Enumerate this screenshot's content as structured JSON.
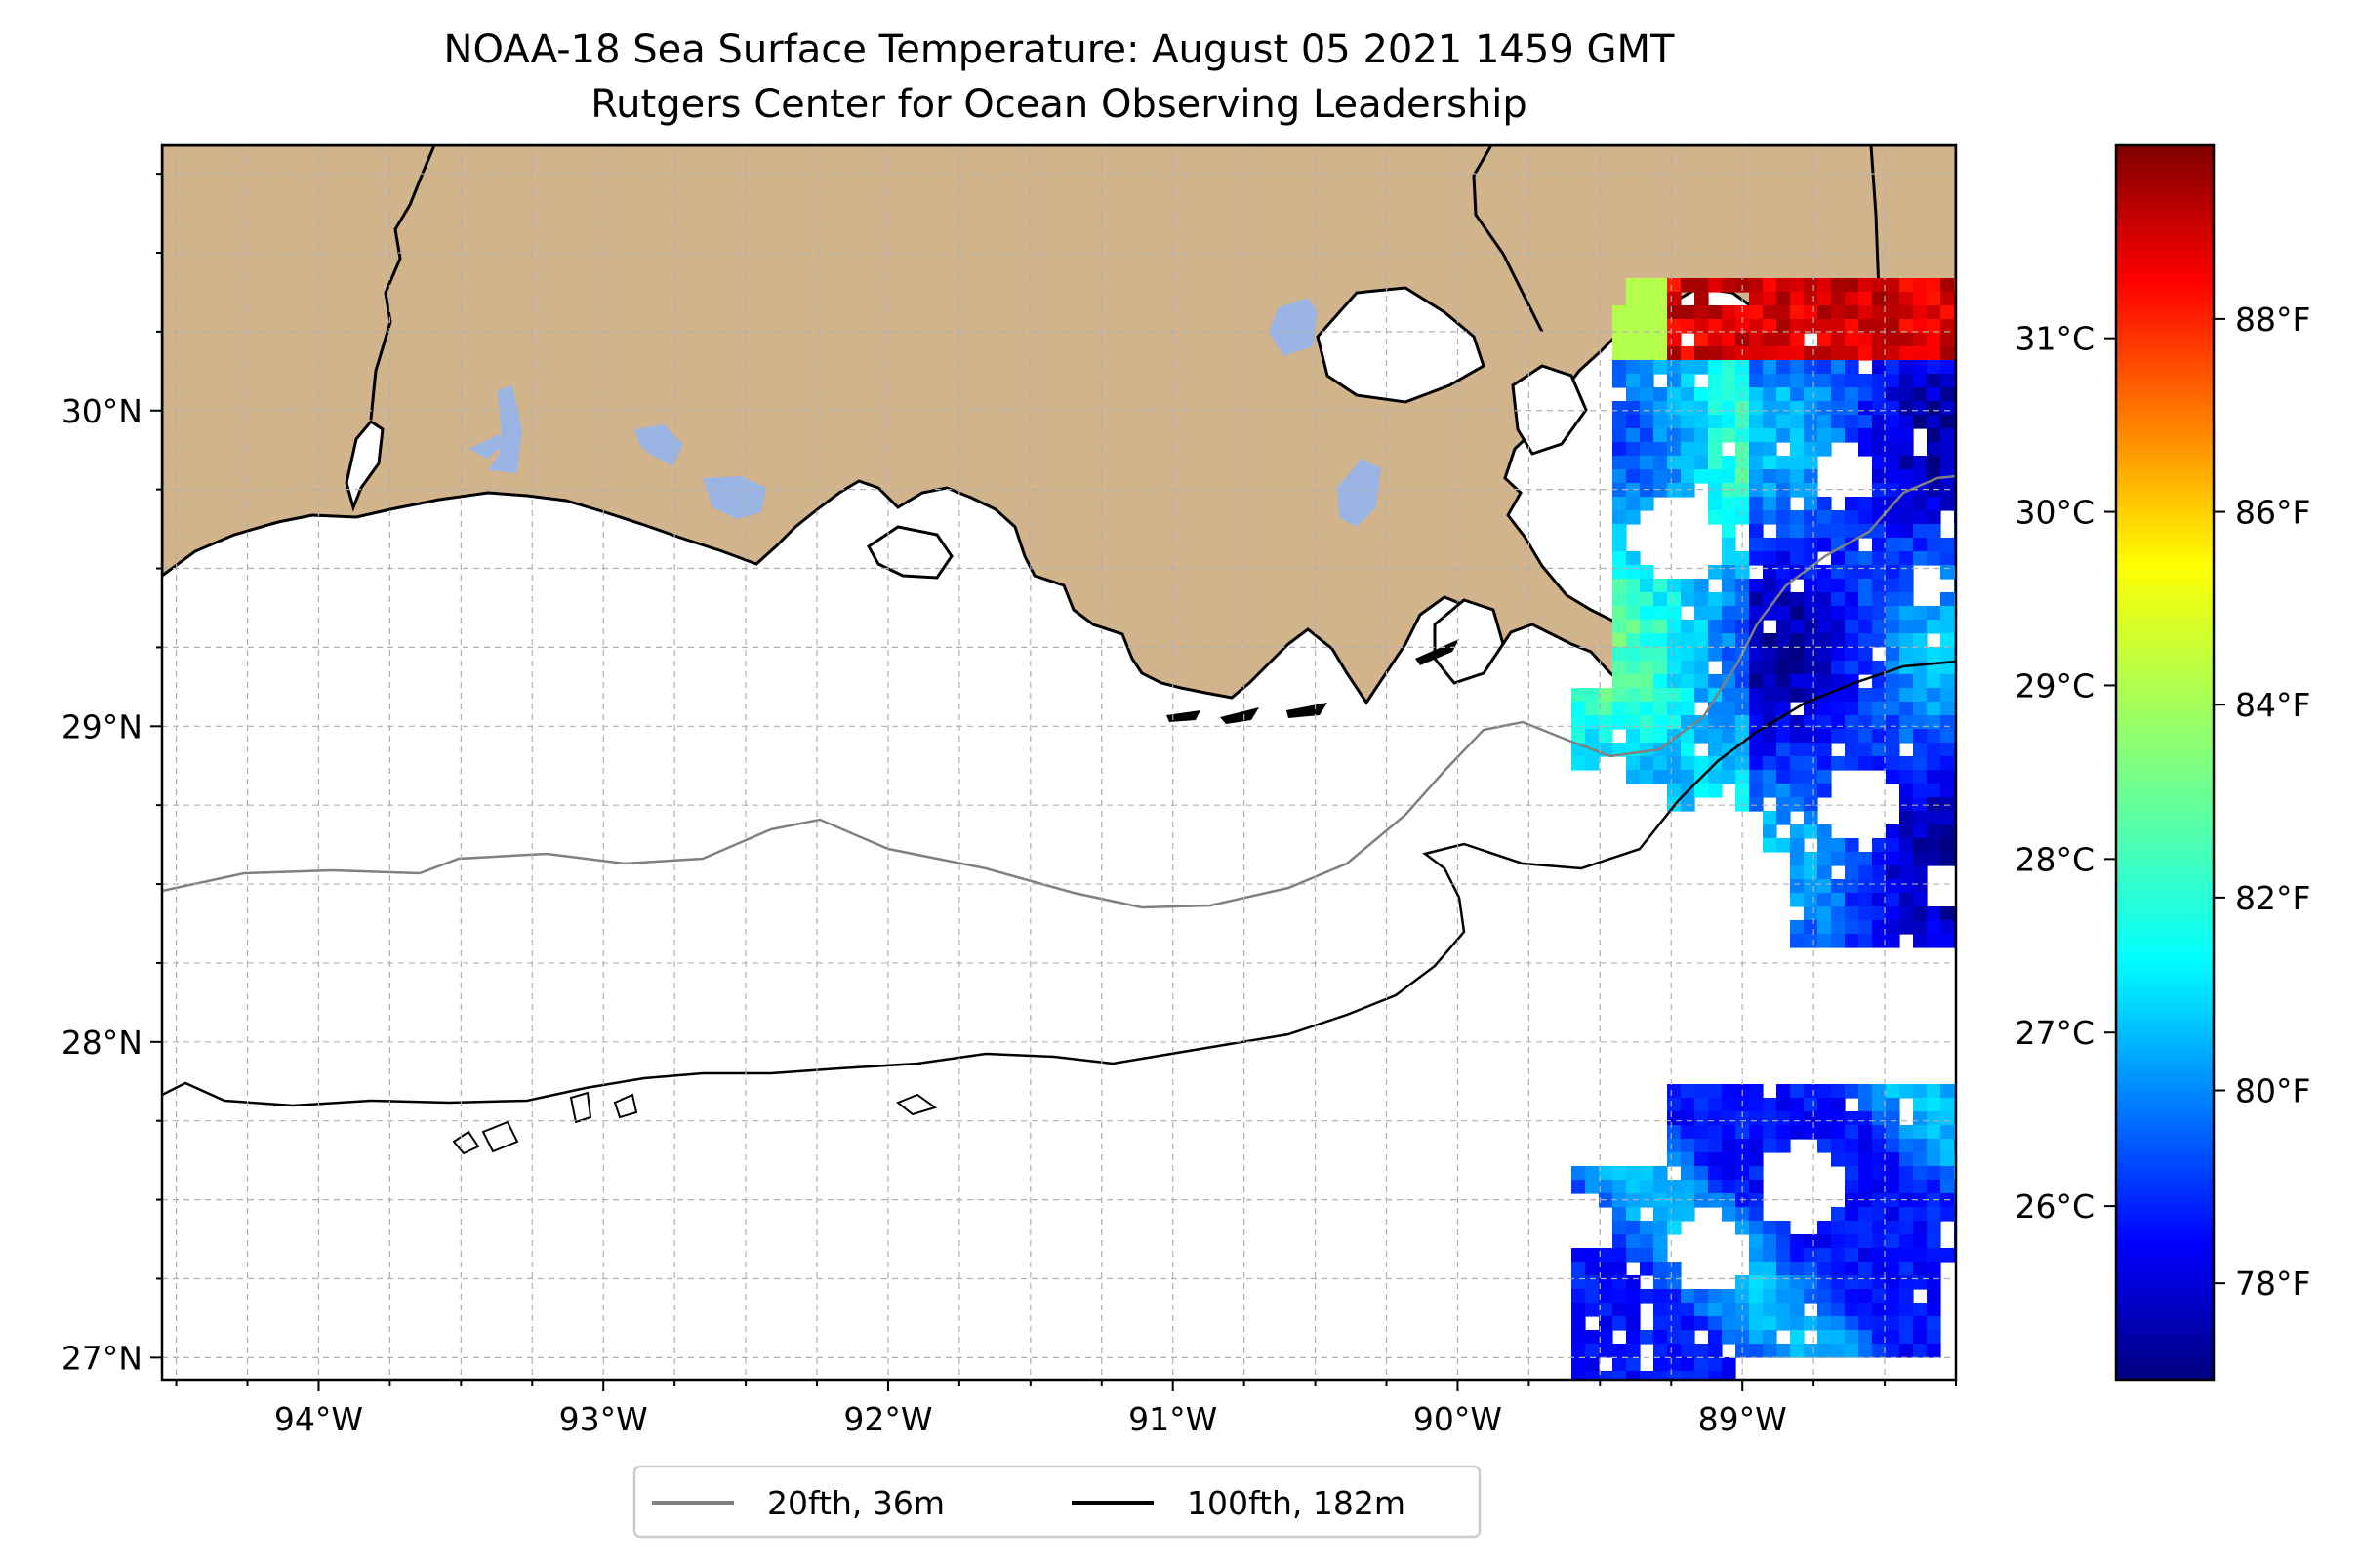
{
  "title": "NOAA-18 Sea Surface Temperature: August 05 2021 1459 GMT",
  "subtitle": "Rutgers Center for Ocean Observing Leadership",
  "map": {
    "lon_range": [
      -94.55,
      -88.25
    ],
    "lat_range": [
      26.93,
      30.84
    ],
    "lon_ticks": [
      {
        "value": -94,
        "label": "94°W"
      },
      {
        "value": -93,
        "label": "93°W"
      },
      {
        "value": -92,
        "label": "92°W"
      },
      {
        "value": -91,
        "label": "91°W"
      },
      {
        "value": -90,
        "label": "90°W"
      },
      {
        "value": -89,
        "label": "89°W"
      }
    ],
    "lat_ticks": [
      {
        "value": 27,
        "label": "27°N"
      },
      {
        "value": 28,
        "label": "28°N"
      },
      {
        "value": 29,
        "label": "29°N"
      },
      {
        "value": 30,
        "label": "30°N"
      }
    ],
    "gridlines": true,
    "land_color": "#d2b48c",
    "lake_color": "#9ab4e4"
  },
  "colorbar": {
    "colormap": "jet",
    "celsius_ticks": [
      {
        "value": 26,
        "label": "26°C"
      },
      {
        "value": 27,
        "label": "27°C"
      },
      {
        "value": 28,
        "label": "28°C"
      },
      {
        "value": 29,
        "label": "29°C"
      },
      {
        "value": 30,
        "label": "30°C"
      },
      {
        "value": 31,
        "label": "31°C"
      }
    ],
    "fahrenheit_ticks": [
      {
        "value": 78,
        "label": "78°F"
      },
      {
        "value": 80,
        "label": "80°F"
      },
      {
        "value": 82,
        "label": "82°F"
      },
      {
        "value": 84,
        "label": "84°F"
      },
      {
        "value": 86,
        "label": "86°F"
      },
      {
        "value": 88,
        "label": "88°F"
      }
    ],
    "fahrenheit_range": [
      77.0,
      89.8
    ]
  },
  "legend": {
    "placement": "bottom-center",
    "entries": [
      {
        "label": "20fth, 36m",
        "color": "#808080"
      },
      {
        "label": "100fth, 182m",
        "color": "#000000"
      }
    ]
  }
}
